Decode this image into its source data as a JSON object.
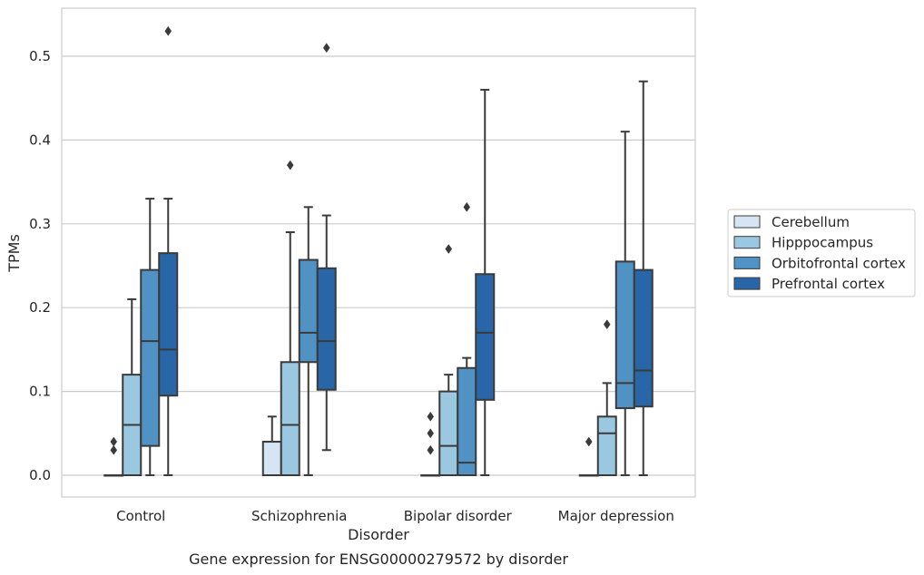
{
  "chart_data": {
    "type": "box",
    "title": "",
    "caption": "Gene expression for ENSG00000279572 by disorder",
    "xlabel": "Disorder",
    "ylabel": "TPMs",
    "ylim": [
      -0.025,
      0.56
    ],
    "yticks": [
      0.0,
      0.1,
      0.2,
      0.3,
      0.4,
      0.5
    ],
    "ytick_labels": [
      "0.0",
      "0.1",
      "0.2",
      "0.3",
      "0.4",
      "0.5"
    ],
    "grid": true,
    "legend_placement": "right",
    "categories": [
      "Control",
      "Schizophrenia",
      "Bipolar disorder",
      "Major depression"
    ],
    "series": [
      {
        "name": "Cerebellum",
        "color": "#d6e5f4",
        "boxes": [
          {
            "whislo": 0.0,
            "q1": 0.0,
            "med": 0.0,
            "q3": 0.0,
            "whishi": 0.0,
            "fliers": [
              0.03,
              0.04
            ]
          },
          {
            "whislo": 0.0,
            "q1": 0.0,
            "med": 0.0,
            "q3": 0.04,
            "whishi": 0.07,
            "fliers": []
          },
          {
            "whislo": 0.0,
            "q1": 0.0,
            "med": 0.0,
            "q3": 0.0,
            "whishi": 0.0,
            "fliers": [
              0.03,
              0.05,
              0.07
            ]
          },
          {
            "whislo": 0.0,
            "q1": 0.0,
            "med": 0.0,
            "q3": 0.0,
            "whishi": 0.0,
            "fliers": [
              0.04
            ]
          }
        ]
      },
      {
        "name": "Hipppocampus",
        "color": "#9ac8e0",
        "boxes": [
          {
            "whislo": 0.0,
            "q1": 0.0,
            "med": 0.06,
            "q3": 0.12,
            "whishi": 0.21,
            "fliers": []
          },
          {
            "whislo": 0.0,
            "q1": 0.0,
            "med": 0.06,
            "q3": 0.135,
            "whishi": 0.29,
            "fliers": [
              0.37
            ]
          },
          {
            "whislo": 0.0,
            "q1": 0.0,
            "med": 0.035,
            "q3": 0.1,
            "whishi": 0.12,
            "fliers": [
              0.27
            ]
          },
          {
            "whislo": 0.0,
            "q1": 0.0,
            "med": 0.05,
            "q3": 0.07,
            "whishi": 0.11,
            "fliers": [
              0.18
            ]
          }
        ]
      },
      {
        "name": "Orbitofrontal cortex",
        "color": "#4f92c3",
        "boxes": [
          {
            "whislo": 0.0,
            "q1": 0.035,
            "med": 0.16,
            "q3": 0.245,
            "whishi": 0.33,
            "fliers": []
          },
          {
            "whislo": 0.0,
            "q1": 0.135,
            "med": 0.17,
            "q3": 0.257,
            "whishi": 0.32,
            "fliers": []
          },
          {
            "whislo": 0.0,
            "q1": 0.0,
            "med": 0.015,
            "q3": 0.128,
            "whishi": 0.14,
            "fliers": [
              0.32
            ]
          },
          {
            "whislo": 0.0,
            "q1": 0.08,
            "med": 0.11,
            "q3": 0.255,
            "whishi": 0.41,
            "fliers": []
          }
        ]
      },
      {
        "name": "Prefrontal cortex",
        "color": "#2866a8",
        "boxes": [
          {
            "whislo": 0.0,
            "q1": 0.095,
            "med": 0.15,
            "q3": 0.265,
            "whishi": 0.33,
            "fliers": [
              0.53
            ]
          },
          {
            "whislo": 0.03,
            "q1": 0.102,
            "med": 0.16,
            "q3": 0.247,
            "whishi": 0.31,
            "fliers": [
              0.51
            ]
          },
          {
            "whislo": 0.0,
            "q1": 0.09,
            "med": 0.17,
            "q3": 0.24,
            "whishi": 0.46,
            "fliers": []
          },
          {
            "whislo": 0.0,
            "q1": 0.082,
            "med": 0.125,
            "q3": 0.245,
            "whishi": 0.47,
            "fliers": []
          }
        ]
      }
    ]
  }
}
